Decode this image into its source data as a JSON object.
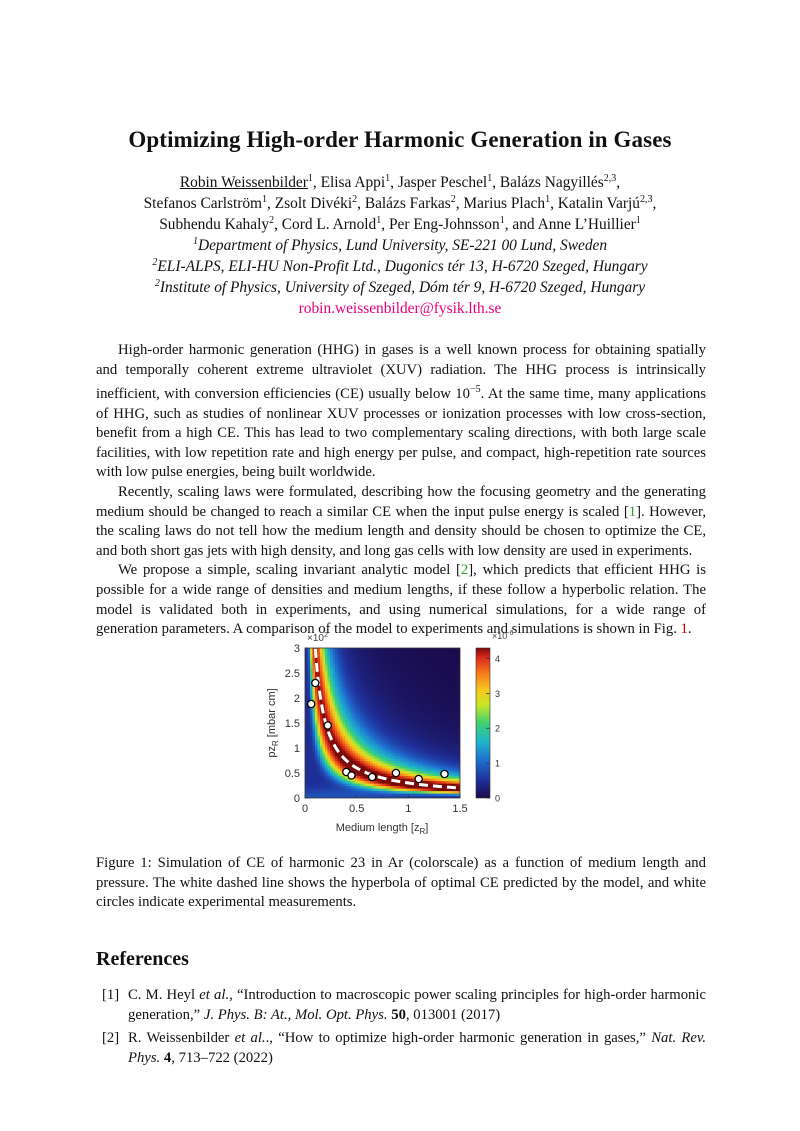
{
  "paper": {
    "title": "Optimizing High-order Harmonic Generation in Gases",
    "authors": [
      {
        "name": "Robin Weissenbilder",
        "sup": "1",
        "sep": ", "
      },
      {
        "name": "Elisa Appi",
        "sup": "1",
        "sep": ", "
      },
      {
        "name": "Jasper Peschel",
        "sup": "1",
        "sep": ", "
      },
      {
        "name": "Balázs Nagyillés",
        "sup": "2,3",
        "sep": ","
      },
      {
        "name": "Stefanos Carlström",
        "sup": "1",
        "sep": ", "
      },
      {
        "name": "Zsolt Divéki",
        "sup": "2",
        "sep": ", "
      },
      {
        "name": "Balázs Farkas",
        "sup": "2",
        "sep": ", "
      },
      {
        "name": "Marius Plach",
        "sup": "1",
        "sep": ", "
      },
      {
        "name": "Katalin Varjú",
        "sup": "2,3",
        "sep": ","
      },
      {
        "name": "Subhendu Kahaly",
        "sup": "2",
        "sep": ", "
      },
      {
        "name": "Cord L. Arnold",
        "sup": "1",
        "sep": ", "
      },
      {
        "name": "Per Eng-Johnsson",
        "sup": "1",
        "sep": ", and "
      },
      {
        "name": "Anne L’Huillier",
        "sup": "1",
        "sep": ""
      }
    ],
    "affiliations": [
      {
        "sup": "1",
        "text": "Department of Physics, Lund University, SE-221 00 Lund, Sweden"
      },
      {
        "sup": "2",
        "text": "ELI-ALPS, ELI-HU Non-Profit Ltd., Dugonics tér 13, H-6720 Szeged, Hungary"
      },
      {
        "sup": "2",
        "text": "Institute of Physics, University of Szeged, Dóm tér 9, H-6720 Szeged, Hungary"
      }
    ],
    "email": "robin.weissenbilder@fysik.lth.se",
    "paragraphs": {
      "p1a": "High-order harmonic generation (HHG) in gases is a well known process for obtaining spatially and temporally coherent extreme ultraviolet (XUV) radiation. The HHG process is intrinsically inefficient, with conversion efficiencies (CE) usually below 10",
      "p1_exp": "−5",
      "p1b": ". At the same time, many applications of HHG, such as studies of nonlinear XUV processes or ionization processes with low cross-section, benefit from a high CE. This has lead to two complementary scaling directions, with both large scale facilities, with low repetition rate and high energy per pulse, and compact, high-repetition rate sources with low pulse energies, being built worldwide.",
      "p2a": "Recently, scaling laws were formulated, describing how the focusing geometry and the generating medium should be changed to reach a similar CE when the input pulse energy is scaled [",
      "p2_ref": "1",
      "p2b": "]. However, the scaling laws do not tell how the medium length and density should be chosen to optimize the CE, and both short gas jets with high density, and long gas cells with low density are used in experiments.",
      "p3a": "We propose a simple, scaling invariant analytic model [",
      "p3_ref": "2",
      "p3b": "], which predicts that efficient HHG is possible for a wide range of densities and medium lengths, if these follow a hyperbolic relation. The model is validated both in experiments, and using numerical simulations, for a wide range of generation parameters. A comparison of the model to experiments and simulations is shown in Fig. ",
      "p3_fig": "1",
      "p3c": "."
    },
    "caption": "Figure 1: Simulation of CE of harmonic 23 in Ar (colorscale) as a function of medium length and pressure. The white dashed line shows the hyperbola of optimal CE predicted by the model, and white circles indicate experimental measurements.",
    "references_heading": "References",
    "references": [
      {
        "num": "[1]",
        "authors": "C. M. Heyl ",
        "etal": "et al.",
        "title": ", “Introduction to macroscopic power scaling principles for high-order harmonic generation,” ",
        "journal": "J. Phys. B: At., Mol. Opt. Phys.",
        "volume": "50",
        "rest": ", 013001 (2017)"
      },
      {
        "num": "[2]",
        "authors": "R. Weissenbilder ",
        "etal": "et al.",
        "title": "., “How to optimize high-order harmonic generation in gases,” ",
        "journal": "Nat. Rev. Phys.",
        "volume": "4",
        "rest": ", 713–722 (2022)"
      }
    ]
  },
  "chart_data": {
    "type": "heatmap",
    "xlabel": "Medium length [z",
    "xlabel_sub": "R",
    "xlabel_end": "]",
    "ylabel": "pz",
    "ylabel_sub": "R",
    "ylabel_end": " [mbar cm]",
    "xlim": [
      0,
      1.5
    ],
    "ylim": [
      0,
      3
    ],
    "y_multiplier": "×10",
    "y_multiplier_exp": "2",
    "x_ticks": [
      "0",
      "0.5",
      "1",
      "1.5"
    ],
    "x_tick_values": [
      0,
      0.5,
      1,
      1.5
    ],
    "y_ticks": [
      "0",
      "0.5",
      "1",
      "1.5",
      "2",
      "2.5",
      "3"
    ],
    "y_tick_values": [
      0,
      0.5,
      1,
      1.5,
      2,
      2.5,
      3
    ],
    "colorbar_multiplier": "×10",
    "colorbar_multiplier_exp": "-6",
    "colorbar_ticks": [
      "0",
      "1",
      "2",
      "3",
      "4"
    ],
    "colorbar_tick_values": [
      0,
      1,
      2,
      3,
      4
    ],
    "colorbar_range": [
      0,
      4.3
    ],
    "hyperbola": {
      "k": 0.3,
      "x_range": [
        0.06,
        1.5
      ]
    },
    "experimental_points": [
      {
        "x": 0.06,
        "y": 1.88
      },
      {
        "x": 0.1,
        "y": 2.3
      },
      {
        "x": 0.22,
        "y": 1.45
      },
      {
        "x": 0.4,
        "y": 0.52
      },
      {
        "x": 0.45,
        "y": 0.45
      },
      {
        "x": 0.65,
        "y": 0.42
      },
      {
        "x": 0.88,
        "y": 0.5
      },
      {
        "x": 1.1,
        "y": 0.38
      },
      {
        "x": 1.35,
        "y": 0.48
      }
    ]
  }
}
